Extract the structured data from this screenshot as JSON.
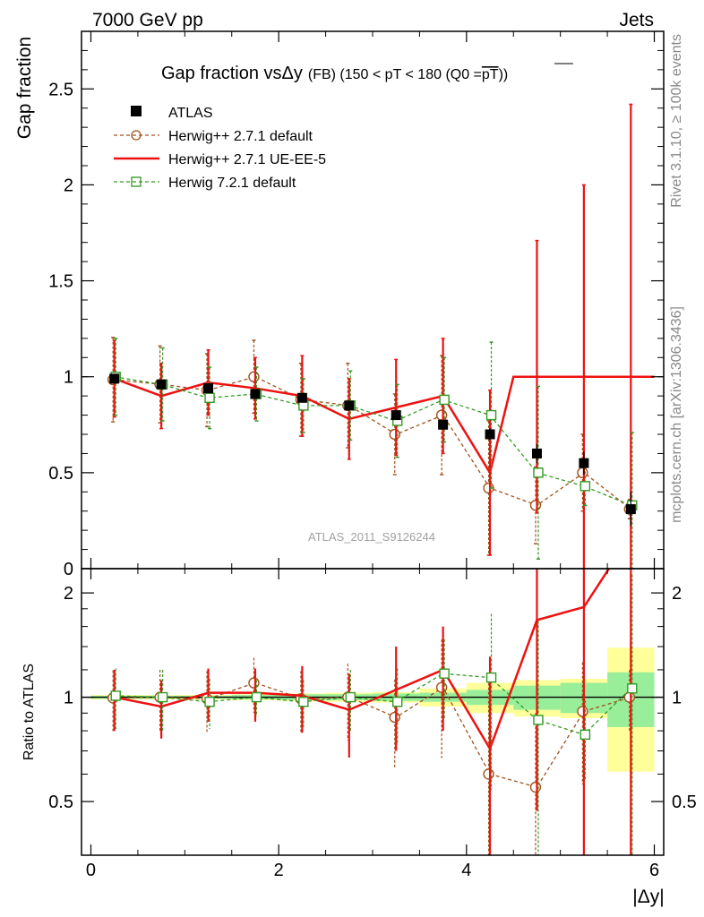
{
  "header": {
    "left_label": "7000 GeV pp",
    "right_label": "Jets"
  },
  "side_labels": {
    "rivet": "Rivet 3.1.10, ≥ 100k events",
    "source": "mcplots.cern.ch [arXiv:1306.3436]"
  },
  "chart_data": {
    "type": "line",
    "title_main": "Gap fraction vsΔy",
    "title_sub": "(FB) (150 < pT < 180 (Q0 =",
    "title_overline": "pT",
    "title_close": "))",
    "watermark": "ATLAS_2011_S9126244",
    "xlabel": "|Δy|",
    "ylabel": "Gap fraction",
    "ratio_ylabel": "Ratio to ATLAS",
    "xlim": [
      -0.1,
      6.1
    ],
    "ylim": [
      0,
      2.8
    ],
    "ratio_ylim": [
      0.35,
      2.35
    ],
    "x_ticks": [
      0,
      2,
      4,
      6
    ],
    "x_tick_labels": [
      "0",
      "2",
      "4",
      "6"
    ],
    "y_ticks": [
      0,
      0.5,
      1,
      1.5,
      2,
      2.5
    ],
    "y_tick_labels": [
      "0",
      "0.5",
      "1",
      "1.5",
      "2",
      "2.5"
    ],
    "ratio_ticks": [
      0.5,
      1,
      2
    ],
    "ratio_tick_labels": [
      "0.5",
      "1",
      "2"
    ],
    "bins": [
      [
        0,
        0.5
      ],
      [
        0.5,
        1
      ],
      [
        1,
        1.5
      ],
      [
        1.5,
        2
      ],
      [
        2,
        2.5
      ],
      [
        2.5,
        3
      ],
      [
        3,
        3.5
      ],
      [
        3.5,
        4
      ],
      [
        4,
        4.5
      ],
      [
        4.5,
        5
      ],
      [
        5,
        5.5
      ],
      [
        5.5,
        6
      ]
    ],
    "x": [
      0.25,
      0.75,
      1.25,
      1.75,
      2.25,
      2.75,
      3.25,
      3.75,
      4.25,
      4.75,
      5.25,
      5.75
    ],
    "data": {
      "name": "ATLAS",
      "values": [
        0.99,
        0.96,
        0.94,
        0.91,
        0.89,
        0.85,
        0.8,
        0.75,
        0.7,
        0.6,
        0.55,
        0.31
      ],
      "errors": [
        0.005,
        0.005,
        0.005,
        0.006,
        0.006,
        0.01,
        0.015,
        0.02,
        0.03,
        0.05,
        0.06,
        0.09
      ]
    },
    "band_stat_halfwidth": [
      0.01,
      0.01,
      0.01,
      0.015,
      0.02,
      0.02,
      0.025,
      0.03,
      0.05,
      0.08,
      0.1,
      0.18
    ],
    "band_total_halfwidth": [
      0.015,
      0.015,
      0.015,
      0.02,
      0.025,
      0.03,
      0.035,
      0.06,
      0.1,
      0.12,
      0.13,
      0.39
    ],
    "series": [
      {
        "name": "Herwig++ 2.7.1 default",
        "color": "#a0521e",
        "style": "dashed",
        "marker": "circle",
        "values": [
          0.985,
          0.96,
          0.93,
          1.0,
          0.88,
          0.85,
          0.7,
          0.8,
          0.42,
          0.33,
          0.5,
          0.31
        ],
        "errors": [
          0.22,
          0.2,
          0.19,
          0.19,
          0.19,
          0.22,
          0.21,
          0.31,
          0.35,
          0.2,
          0.2,
          0.05
        ],
        "ratio": [
          0.995,
          1.0,
          0.99,
          1.1,
          0.99,
          1.0,
          0.875,
          1.067,
          0.6,
          0.55,
          0.91,
          1.0
        ],
        "ratio_errors": [
          0.2,
          0.2,
          0.2,
          0.2,
          0.2,
          0.25,
          0.25,
          0.4,
          0.5,
          0.35,
          0.35,
          0.2
        ]
      },
      {
        "name": "Herwig++ 2.7.1 UE-EE-5",
        "color": "#ee1111",
        "style": "solid",
        "marker": "none",
        "steps": [
          0.99,
          0.9,
          0.97,
          0.94,
          0.9,
          0.78,
          0.84,
          0.9,
          0.5,
          1.0,
          1.0,
          1.0
        ],
        "values": [
          0.99,
          0.9,
          0.97,
          0.94,
          0.9,
          0.78,
          0.84,
          0.9,
          0.5,
          1.0,
          1.0,
          1.0
        ],
        "errors": [
          0.2,
          0.17,
          0.17,
          0.16,
          0.21,
          0.21,
          0.25,
          0.3,
          0.43,
          0.71,
          1.0,
          1.42
        ],
        "ratio": [
          1.0,
          0.94,
          1.03,
          1.03,
          1.01,
          0.92,
          1.05,
          1.2,
          0.71,
          1.67,
          1.82,
          3.2
        ],
        "ratio_errors": [
          0.2,
          0.18,
          0.18,
          0.18,
          0.22,
          0.25,
          0.35,
          0.4,
          0.6,
          1.2,
          1.8,
          3.0
        ]
      },
      {
        "name": "Herwig 7.2.1 default",
        "color": "#339922",
        "style": "dashed",
        "marker": "square",
        "values": [
          1.0,
          0.96,
          0.89,
          0.91,
          0.85,
          0.85,
          0.77,
          0.88,
          0.8,
          0.5,
          0.43,
          0.33
        ],
        "errors": [
          0.2,
          0.19,
          0.16,
          0.14,
          0.14,
          0.18,
          0.19,
          0.22,
          0.38,
          0.45,
          0.1,
          0.38
        ],
        "ratio": [
          1.01,
          1.0,
          0.97,
          1.0,
          0.97,
          1.0,
          0.97,
          1.17,
          1.14,
          0.86,
          0.78,
          1.06
        ],
        "ratio_errors": [
          0.2,
          0.2,
          0.16,
          0.12,
          0.15,
          0.2,
          0.24,
          0.3,
          0.6,
          0.8,
          0.2,
          1.2
        ]
      }
    ]
  }
}
